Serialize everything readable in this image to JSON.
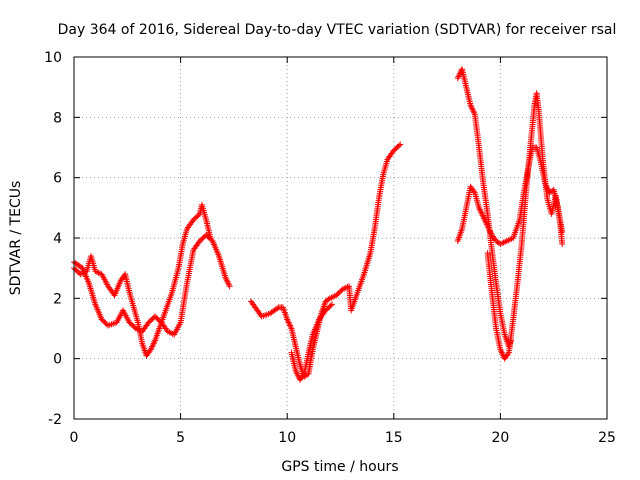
{
  "chart_data": {
    "type": "scatter",
    "title": "Day 364 of 2016, Sidereal Day-to-day VTEC variation (SDTVAR) for receiver rsal",
    "xlabel": "GPS time / hours",
    "ylabel": "SDTVAR / TECUs",
    "xlim": [
      0,
      25
    ],
    "ylim": [
      -2,
      10
    ],
    "xticks": [
      "0",
      "5",
      "10",
      "15",
      "20",
      "25"
    ],
    "yticks": [
      "-2",
      "0",
      "2",
      "4",
      "6",
      "8",
      "10"
    ],
    "grid": true,
    "marker": "+",
    "series": [
      {
        "name": "SDTVAR",
        "color": "#ff0000",
        "segments": [
          [
            [
              0,
              3.2
            ],
            [
              0.4,
              3.0
            ],
            [
              0.7,
              2.5
            ],
            [
              1.0,
              1.8
            ],
            [
              1.3,
              1.3
            ],
            [
              1.6,
              1.1
            ],
            [
              2.0,
              1.2
            ],
            [
              2.3,
              1.6
            ],
            [
              2.6,
              1.2
            ],
            [
              2.9,
              1.0
            ],
            [
              3.2,
              0.9
            ],
            [
              3.5,
              1.2
            ],
            [
              3.8,
              1.4
            ],
            [
              4.1,
              1.2
            ],
            [
              4.4,
              0.9
            ],
            [
              4.7,
              0.8
            ],
            [
              5.0,
              1.2
            ],
            [
              5.3,
              2.5
            ],
            [
              5.6,
              3.6
            ],
            [
              5.9,
              3.9
            ],
            [
              6.2,
              4.1
            ],
            [
              6.5,
              3.9
            ],
            [
              6.8,
              3.4
            ],
            [
              7.1,
              2.7
            ],
            [
              7.3,
              2.4
            ]
          ],
          [
            [
              0,
              3.0
            ],
            [
              0.3,
              2.8
            ],
            [
              0.6,
              2.9
            ],
            [
              0.8,
              3.4
            ],
            [
              1.0,
              2.9
            ],
            [
              1.3,
              2.8
            ],
            [
              1.6,
              2.4
            ],
            [
              1.9,
              2.1
            ],
            [
              2.2,
              2.6
            ],
            [
              2.4,
              2.8
            ],
            [
              2.6,
              2.2
            ],
            [
              2.8,
              1.7
            ],
            [
              3.0,
              1.2
            ],
            [
              3.2,
              0.5
            ],
            [
              3.4,
              0.1
            ],
            [
              3.6,
              0.3
            ],
            [
              3.8,
              0.6
            ],
            [
              4.0,
              1.0
            ],
            [
              4.3,
              1.6
            ],
            [
              4.6,
              2.2
            ],
            [
              4.9,
              3.0
            ],
            [
              5.1,
              3.8
            ],
            [
              5.3,
              4.3
            ],
            [
              5.6,
              4.6
            ],
            [
              5.9,
              4.8
            ],
            [
              6.0,
              5.1
            ],
            [
              6.2,
              4.6
            ],
            [
              6.4,
              4.0
            ]
          ],
          [
            [
              8.3,
              1.9
            ],
            [
              8.5,
              1.7
            ],
            [
              8.8,
              1.4
            ],
            [
              9.2,
              1.5
            ],
            [
              9.6,
              1.7
            ],
            [
              9.8,
              1.7
            ],
            [
              10.0,
              1.3
            ],
            [
              10.2,
              1.0
            ],
            [
              10.4,
              0.4
            ],
            [
              10.6,
              -0.2
            ],
            [
              10.8,
              -0.6
            ],
            [
              11.0,
              -0.5
            ],
            [
              11.2,
              0.3
            ],
            [
              11.4,
              0.9
            ],
            [
              11.6,
              1.5
            ],
            [
              11.8,
              1.9
            ],
            [
              12.0,
              2.0
            ],
            [
              12.3,
              2.1
            ],
            [
              12.6,
              2.3
            ],
            [
              12.9,
              2.4
            ],
            [
              13.0,
              1.6
            ],
            [
              13.3,
              2.2
            ],
            [
              13.6,
              2.8
            ],
            [
              13.9,
              3.5
            ],
            [
              14.1,
              4.3
            ],
            [
              14.3,
              5.3
            ],
            [
              14.5,
              6.1
            ],
            [
              14.7,
              6.6
            ],
            [
              15.0,
              6.9
            ],
            [
              15.3,
              7.1
            ]
          ],
          [
            [
              10.2,
              0.2
            ],
            [
              10.4,
              -0.4
            ],
            [
              10.6,
              -0.7
            ],
            [
              10.8,
              -0.5
            ],
            [
              11.0,
              0.2
            ],
            [
              11.2,
              0.8
            ],
            [
              11.5,
              1.3
            ],
            [
              11.8,
              1.6
            ],
            [
              12.1,
              1.8
            ]
          ],
          [
            [
              18.0,
              9.3
            ],
            [
              18.2,
              9.6
            ],
            [
              18.4,
              9.0
            ],
            [
              18.6,
              8.4
            ],
            [
              18.8,
              8.1
            ],
            [
              19.0,
              7.0
            ],
            [
              19.2,
              5.8
            ],
            [
              19.4,
              4.8
            ],
            [
              19.6,
              3.6
            ],
            [
              19.8,
              2.5
            ],
            [
              20.0,
              1.5
            ],
            [
              20.2,
              0.8
            ],
            [
              20.4,
              0.4
            ],
            [
              20.5,
              0.6
            ]
          ],
          [
            [
              18.0,
              3.9
            ],
            [
              18.2,
              4.3
            ],
            [
              18.4,
              5.0
            ],
            [
              18.6,
              5.7
            ],
            [
              18.8,
              5.5
            ],
            [
              19.0,
              5.0
            ],
            [
              19.2,
              4.7
            ],
            [
              19.4,
              4.4
            ],
            [
              19.6,
              4.1
            ],
            [
              19.8,
              3.9
            ],
            [
              20.0,
              3.8
            ],
            [
              20.3,
              3.9
            ],
            [
              20.6,
              4.0
            ],
            [
              20.9,
              4.6
            ],
            [
              21.1,
              5.5
            ],
            [
              21.3,
              6.3
            ],
            [
              21.5,
              7.0
            ],
            [
              21.7,
              7.0
            ],
            [
              21.9,
              6.5
            ],
            [
              22.1,
              5.8
            ],
            [
              22.3,
              5.5
            ],
            [
              22.5,
              5.6
            ],
            [
              22.7,
              5.0
            ],
            [
              22.9,
              4.2
            ]
          ],
          [
            [
              19.4,
              3.5
            ],
            [
              19.6,
              2.2
            ],
            [
              19.8,
              1.0
            ],
            [
              20.0,
              0.3
            ],
            [
              20.2,
              0.0
            ],
            [
              20.4,
              0.2
            ],
            [
              20.6,
              1.3
            ],
            [
              20.8,
              2.5
            ],
            [
              21.0,
              3.8
            ],
            [
              21.2,
              5.5
            ],
            [
              21.4,
              7.0
            ],
            [
              21.6,
              8.4
            ],
            [
              21.7,
              8.8
            ],
            [
              21.8,
              8.2
            ],
            [
              22.0,
              6.5
            ],
            [
              22.2,
              5.3
            ],
            [
              22.4,
              4.8
            ],
            [
              22.6,
              5.4
            ],
            [
              22.8,
              4.5
            ],
            [
              22.9,
              3.8
            ]
          ]
        ]
      }
    ]
  }
}
